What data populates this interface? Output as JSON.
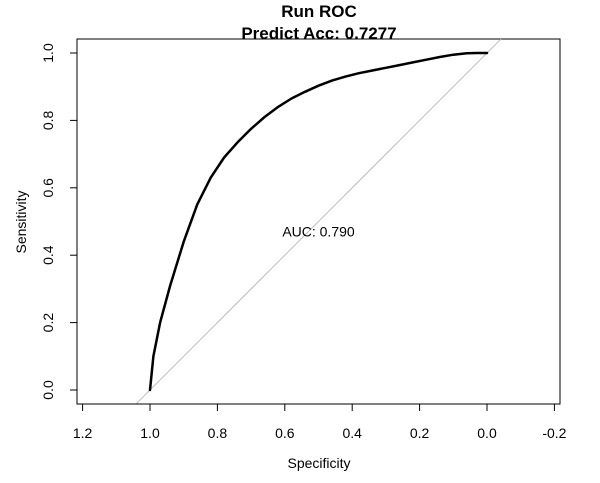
{
  "chart_data": {
    "type": "line",
    "title": "Run ROC",
    "subtitle": "Predict Acc: 0.7277",
    "xlabel": "Specificity",
    "ylabel": "Sensitivity",
    "xlim": [
      1.2,
      -0.2
    ],
    "ylim": [
      0.0,
      1.0
    ],
    "x_reversed": true,
    "x_ticks": [
      1.2,
      1.0,
      0.8,
      0.6,
      0.4,
      0.2,
      0.0,
      -0.2
    ],
    "x_tick_labels": [
      "1.2",
      "1.0",
      "0.8",
      "0.6",
      "0.4",
      "0.2",
      "0.0",
      "-0.2"
    ],
    "y_ticks": [
      0.0,
      0.2,
      0.4,
      0.6,
      0.8,
      1.0
    ],
    "y_tick_labels": [
      "0.0",
      "0.2",
      "0.4",
      "0.6",
      "0.8",
      "1.0"
    ],
    "grid": false,
    "series": [
      {
        "x": [
          1.0,
          0.99,
          0.97,
          0.94,
          0.9,
          0.86,
          0.82,
          0.78,
          0.74,
          0.7,
          0.66,
          0.62,
          0.58,
          0.54,
          0.5,
          0.46,
          0.42,
          0.38,
          0.34,
          0.3,
          0.26,
          0.22,
          0.18,
          0.14,
          0.1,
          0.06,
          0.03,
          0.0
        ],
        "y": [
          0.0,
          0.1,
          0.2,
          0.31,
          0.44,
          0.55,
          0.63,
          0.69,
          0.735,
          0.775,
          0.81,
          0.84,
          0.865,
          0.885,
          0.903,
          0.918,
          0.93,
          0.94,
          0.948,
          0.956,
          0.964,
          0.972,
          0.98,
          0.988,
          0.995,
          0.999,
          1.0,
          1.0
        ],
        "color": "#000000"
      }
    ],
    "reference_line": {
      "from": [
        1.0,
        0.0
      ],
      "to": [
        0.0,
        1.0
      ],
      "color": "#bdbdbd"
    },
    "annotations": [
      {
        "text": "AUC: 0.790",
        "x": 0.5,
        "y": 0.47
      }
    ]
  }
}
